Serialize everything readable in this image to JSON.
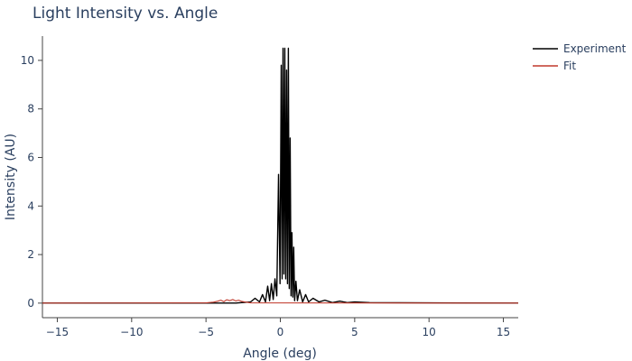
{
  "chart_data": {
    "type": "line",
    "title": "Light Intensity vs. Angle",
    "xlabel": "Angle (deg)",
    "ylabel": "Intensity (AU)",
    "xlim": [
      -16,
      16
    ],
    "ylim": [
      -0.6,
      11
    ],
    "x_ticks": [
      -15,
      -10,
      -5,
      0,
      5,
      10,
      15
    ],
    "x_tick_labels": [
      "−15",
      "−10",
      "−5",
      "0",
      "5",
      "10",
      "15"
    ],
    "y_ticks": [
      0,
      2,
      4,
      6,
      8,
      10
    ],
    "y_tick_labels": [
      "0",
      "2",
      "4",
      "6",
      "8",
      "10"
    ],
    "grid": false,
    "legend_position": "top-right",
    "series": [
      {
        "name": "Experiment",
        "color": "#000000",
        "x": [
          -16,
          -3,
          -2,
          -1.7,
          -1.4,
          -1.2,
          -1.0,
          -0.85,
          -0.72,
          -0.6,
          -0.48,
          -0.36,
          -0.24,
          -0.12,
          -0.02,
          0.06,
          0.12,
          0.18,
          0.24,
          0.3,
          0.36,
          0.42,
          0.48,
          0.54,
          0.6,
          0.66,
          0.72,
          0.78,
          0.84,
          0.9,
          0.96,
          1.05,
          1.15,
          1.3,
          1.5,
          1.7,
          1.9,
          2.2,
          2.6,
          3.0,
          3.5,
          4.0,
          4.5,
          5.0,
          6.0,
          16
        ],
        "y": [
          0,
          0,
          0.05,
          0.2,
          0.05,
          0.35,
          0.05,
          0.7,
          0.1,
          0.8,
          0.15,
          1.0,
          0.3,
          5.3,
          0.8,
          9.8,
          1.0,
          10.5,
          1.2,
          10.5,
          1.0,
          9.6,
          0.8,
          10.5,
          0.6,
          6.8,
          0.3,
          2.9,
          0.25,
          2.3,
          0.1,
          0.9,
          0.1,
          0.55,
          0.05,
          0.35,
          0.05,
          0.2,
          0.05,
          0.12,
          0.02,
          0.08,
          0.02,
          0.05,
          0.02,
          0
        ]
      },
      {
        "name": "Fit",
        "color": "#c0392b",
        "x": [
          -16,
          -5,
          -4.5,
          -4.2,
          -4.0,
          -3.8,
          -3.6,
          -3.4,
          -3.2,
          -3.0,
          -2.8,
          -2.6,
          -2.4,
          -2.0,
          16
        ],
        "y": [
          0,
          0.01,
          0.04,
          0.08,
          0.12,
          0.06,
          0.14,
          0.1,
          0.15,
          0.09,
          0.12,
          0.07,
          0.05,
          0.01,
          0
        ]
      }
    ]
  }
}
